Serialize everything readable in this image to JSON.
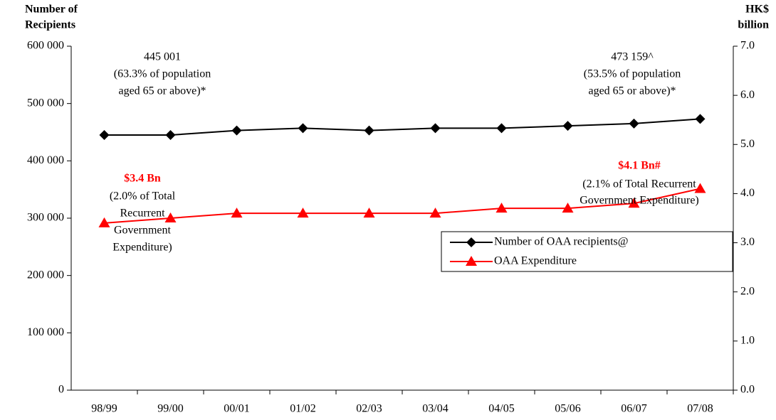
{
  "chart_data": {
    "type": "line",
    "y_label": [
      "Number of",
      "Recipients"
    ],
    "y2_label": [
      "HK$",
      "billion"
    ],
    "categories": [
      "98/99",
      "99/00",
      "00/01",
      "01/02",
      "02/03",
      "03/04",
      "04/05",
      "05/06",
      "06/07",
      "07/08"
    ],
    "series": [
      {
        "name": "Number of OAA recipients@",
        "color": "#000000",
        "marker": "diamond",
        "values": [
          445001,
          445000,
          453000,
          457000,
          453000,
          457000,
          457000,
          461000,
          465000,
          473159
        ]
      },
      {
        "name": "OAA Expenditure",
        "color": "#ff0000",
        "marker": "triangle",
        "axis": "y2",
        "values": [
          3.4,
          3.5,
          3.6,
          3.6,
          3.6,
          3.6,
          3.7,
          3.7,
          3.8,
          4.1
        ]
      }
    ],
    "ylim": [
      0,
      600000
    ],
    "yticks": [
      0,
      {
        "value": 100000,
        "label": "100 000"
      },
      {
        "value": 200000,
        "label": "200 000"
      },
      {
        "value": 300000,
        "label": "300 000"
      },
      {
        "value": 400000,
        "label": "400 000"
      },
      {
        "value": 500000,
        "label": "500 000"
      },
      {
        "value": 600000,
        "label": "600 000"
      }
    ],
    "y2lim": [
      0,
      7
    ],
    "y2ticks": [
      {
        "value": 0,
        "label": "0.0"
      },
      {
        "value": 1,
        "label": "1.0"
      },
      {
        "value": 2,
        "label": "2.0"
      },
      {
        "value": 3,
        "label": "3.0"
      },
      {
        "value": 4,
        "label": "4.0"
      },
      {
        "value": 5,
        "label": "5.0"
      },
      {
        "value": 6,
        "label": "6.0"
      },
      {
        "value": 7,
        "label": "7.0"
      }
    ],
    "legend": "bottom-right",
    "annotations": [
      {
        "lines": [
          "445 001",
          "(63.3% of population",
          "aged 65 or above)*"
        ],
        "color": "#000000"
      },
      {
        "lines": [
          "473 159^",
          "(53.5% of population",
          "aged 65 or above)*"
        ],
        "color": "#000000"
      },
      {
        "lines": [
          "$3.4 Bn"
        ],
        "color": "#ff0000"
      },
      {
        "lines": [
          "(2.0% of Total",
          "Recurrent",
          "Government",
          "Expenditure)"
        ],
        "color": "#000000"
      },
      {
        "lines": [
          "$4.1 Bn#"
        ],
        "color": "#ff0000"
      },
      {
        "lines": [
          "(2.1% of Total Recurrent",
          "Government Expenditure)"
        ],
        "color": "#000000"
      }
    ]
  }
}
